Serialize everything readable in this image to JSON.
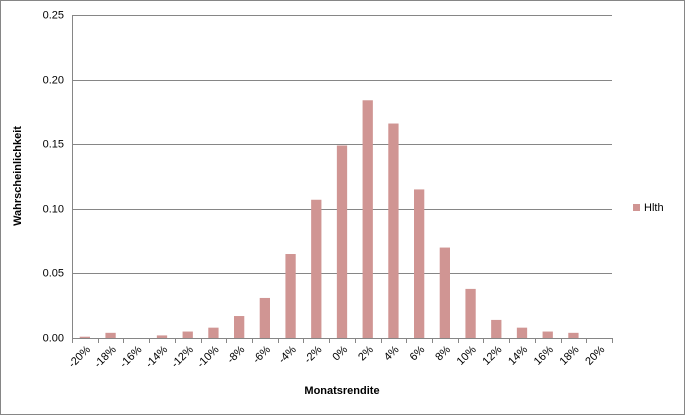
{
  "chart_data": {
    "type": "bar",
    "x_label": "Monatsrendite",
    "y_label": "Wahrscheinlichkeit",
    "categories": [
      "-20%",
      "-18%",
      "-16%",
      "-14%",
      "-12%",
      "-10%",
      "-8%",
      "-6%",
      "-4%",
      "-2%",
      "0%",
      "2%",
      "4%",
      "6%",
      "8%",
      "10%",
      "12%",
      "14%",
      "16%",
      "18%",
      "20%"
    ],
    "series": [
      {
        "name": "Hlth",
        "color": "#d09593",
        "values": [
          0.001,
          0.004,
          0,
          0.002,
          0.005,
          0.008,
          0.017,
          0.031,
          0.065,
          0.107,
          0.149,
          0.184,
          0.166,
          0.115,
          0.07,
          0.038,
          0.014,
          0.008,
          0.005,
          0.004,
          0
        ]
      }
    ],
    "ylim": [
      0,
      0.25
    ],
    "yticks": [
      {
        "value": 0,
        "label": "0.00"
      },
      {
        "value": 0.05,
        "label": "0.05"
      },
      {
        "value": 0.1,
        "label": "0.10"
      },
      {
        "value": 0.15,
        "label": "0.15"
      },
      {
        "value": 0.2,
        "label": "0.20"
      },
      {
        "value": 0.25,
        "label": "0.25"
      }
    ],
    "grid": true,
    "legend": "right"
  }
}
